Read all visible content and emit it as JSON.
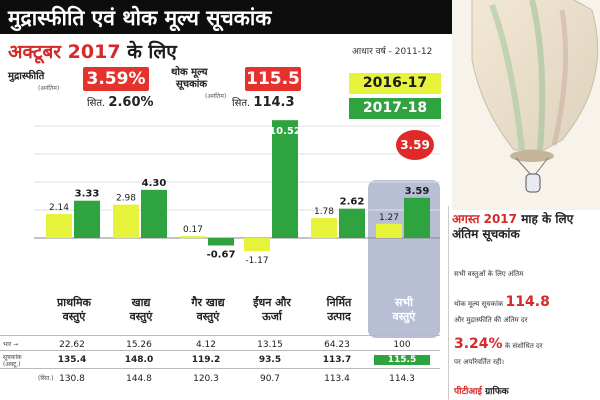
{
  "header": {
    "title": "मुद्रास्फीति एवं थोक मूल्य सूचकांक",
    "month": "अक्टूबर 2017",
    "month_suffix": "के लिए",
    "base_year": "आधार वर्ष - 2011-12",
    "inflation_label": "मुद्रास्फीति",
    "inflation_sub": "(अनंतिम)",
    "inflation_value": "3.59%",
    "inflation_prev_prefix": "सित.",
    "inflation_prev": "2.60%",
    "wpi_label_1": "थोक मूल्य",
    "wpi_label_2": "सूचकांक",
    "wpi_sub": "(अनंतिम)",
    "wpi_value": "115.5",
    "wpi_prev_prefix": "सित.",
    "wpi_prev": "114.3"
  },
  "chart_data": {
    "type": "bar",
    "categories": [
      [
        "प्राथमिक",
        "वस्तुएं"
      ],
      [
        "खाद्य",
        "वस्तुएं"
      ],
      [
        "गैर खाद्य",
        "वस्तुएं"
      ],
      [
        "ईंधन और",
        "ऊर्जा"
      ],
      [
        "निर्मित",
        "उत्पाद"
      ],
      [
        "सभी",
        "वस्तुएं"
      ]
    ],
    "series": [
      {
        "name": "2016-17",
        "color": "#e6f33a",
        "values": [
          2.14,
          2.98,
          0.17,
          -1.17,
          1.78,
          1.27
        ]
      },
      {
        "name": "2017-18",
        "color": "#2fa33f",
        "values": [
          3.33,
          4.3,
          -0.67,
          10.52,
          2.62,
          3.59
        ]
      }
    ],
    "highlight_value": "3.59",
    "title": "",
    "xlabel": "",
    "ylabel": "",
    "ylim": [
      -2,
      11
    ],
    "grid": true,
    "legend": "top-right"
  },
  "table": {
    "row_labels": [
      "भार →",
      "सूचकांक (अक्टू.)",
      "(सित.)"
    ],
    "weights": [
      "22.62",
      "15.26",
      "4.12",
      "13.15",
      "64.23",
      "100"
    ],
    "oct": [
      "135.4",
      "148.0",
      "119.2",
      "93.5",
      "113.7",
      "115.5"
    ],
    "sep": [
      "130.8",
      "144.8",
      "120.3",
      "90.7",
      "113.4",
      "114.3"
    ]
  },
  "august": {
    "title_red": "अगस्त 2017",
    "title_rest": "माह के लिए अंतिम सूचकांक",
    "line1": "सभी वस्तुओं के लिए अंतिम",
    "line2_pre": "थोक मूल्य सूचकांक",
    "line2_value": "114.8",
    "line3": "और मुद्रास्फीति की अंतिम दर",
    "line4_value": "3.24%",
    "line4_post": "के संशोधित दर",
    "line5": "पर अपरिवर्तित रही।",
    "source_red": "पीटीआई",
    "source_rest": "ग्राफिक"
  },
  "colors": {
    "yellow": "#e6f33a",
    "green": "#2fa33f",
    "red": "#e5322d",
    "panel": "#b8bfd4"
  }
}
